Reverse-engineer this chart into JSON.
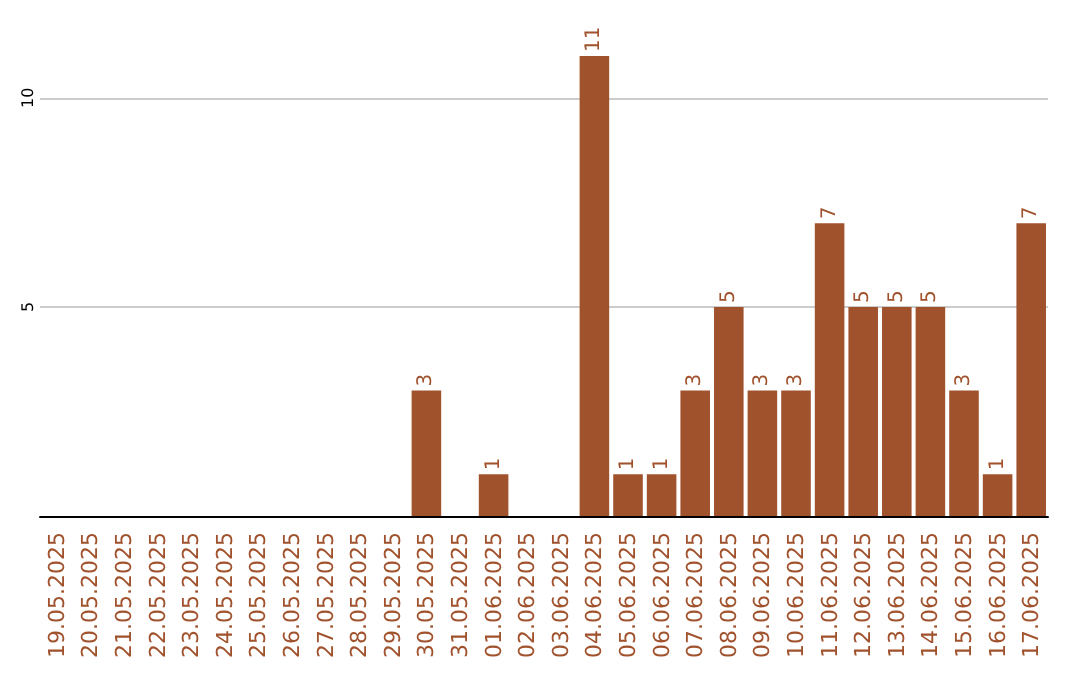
{
  "chart_data": {
    "type": "bar",
    "categories": [
      "19.05.2025",
      "20.05.2025",
      "21.05.2025",
      "22.05.2025",
      "23.05.2025",
      "24.05.2025",
      "25.05.2025",
      "26.05.2025",
      "27.05.2025",
      "28.05.2025",
      "29.05.2025",
      "30.05.2025",
      "31.05.2025",
      "01.06.2025",
      "02.06.2025",
      "03.06.2025",
      "04.06.2025",
      "05.06.2025",
      "06.06.2025",
      "07.06.2025",
      "08.06.2025",
      "09.06.2025",
      "10.06.2025",
      "11.06.2025",
      "12.06.2025",
      "13.06.2025",
      "14.06.2025",
      "15.06.2025",
      "16.06.2025",
      "17.06.2025"
    ],
    "values": [
      0,
      0,
      0,
      0,
      0,
      0,
      0,
      0,
      0,
      0,
      0,
      3,
      0,
      1,
      0,
      0,
      11,
      1,
      1,
      3,
      5,
      3,
      3,
      7,
      5,
      5,
      5,
      3,
      1,
      7
    ],
    "value_labels": [
      null,
      null,
      null,
      null,
      null,
      null,
      null,
      null,
      null,
      null,
      null,
      "3",
      null,
      "1",
      null,
      null,
      "11",
      "1",
      "1",
      "3",
      "5",
      "3",
      "3",
      "7",
      "5",
      "5",
      "5",
      "3",
      "1",
      "7"
    ],
    "color": "#a0522d",
    "ylim": [
      0,
      11
    ],
    "yticks": [
      5,
      10
    ],
    "grid": "y"
  }
}
